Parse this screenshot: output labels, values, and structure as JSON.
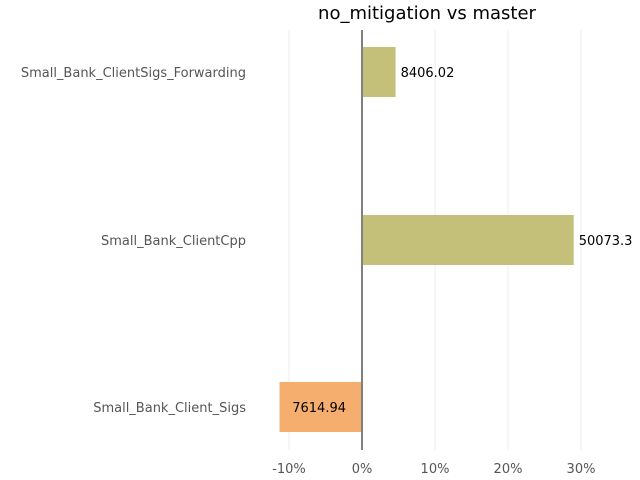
{
  "chart_data": {
    "type": "bar",
    "orientation": "horizontal",
    "title": "no_mitigation vs master",
    "xlabel": "",
    "ylabel": "",
    "grid": true,
    "xlim": [
      -0.115,
      0.295
    ],
    "xticks": [
      -0.1,
      0,
      0.1,
      0.2,
      0.3
    ],
    "xtick_labels": [
      "-10%",
      "0%",
      "10%",
      "20%",
      "30%"
    ],
    "categories": [
      "Small_Bank_ClientSigs_Forwarding",
      "Small_Bank_ClientCpp",
      "Small_Bank_Client_Sigs"
    ],
    "values": [
      0.046,
      0.29,
      -0.113
    ],
    "value_labels": [
      "8406.02",
      "50073.3",
      "7614.94"
    ],
    "colors": [
      "#c4c07a",
      "#c4c07a",
      "#f6ae6f"
    ]
  }
}
